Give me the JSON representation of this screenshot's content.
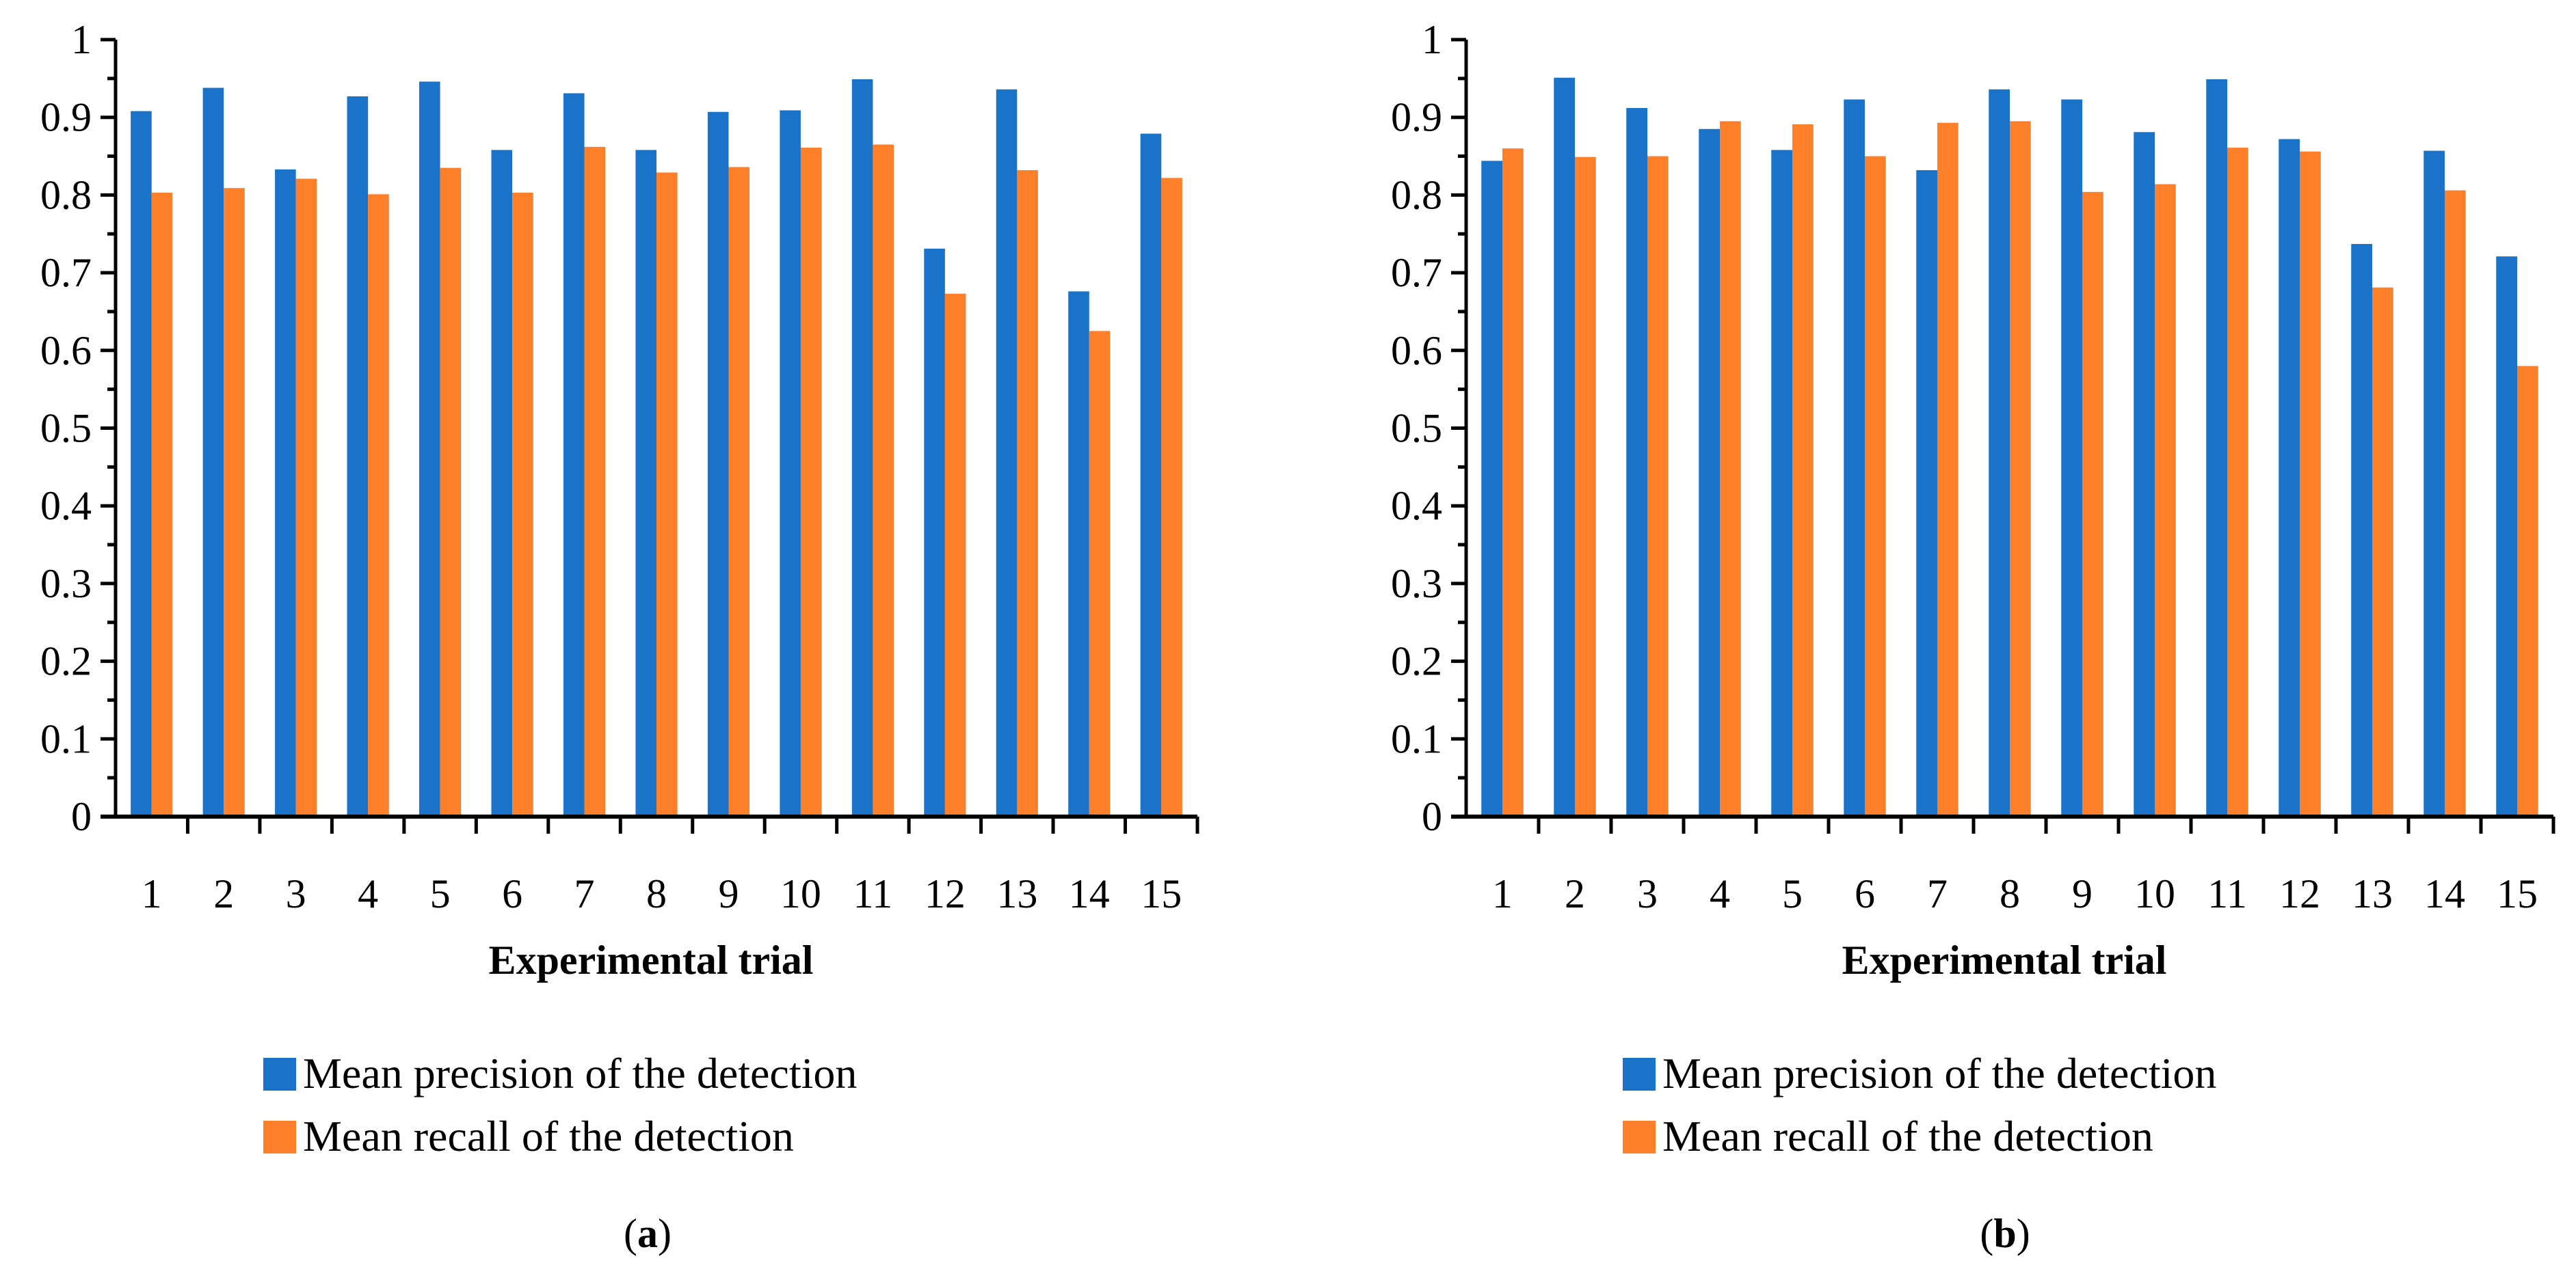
{
  "colors": {
    "precision": "#1a73c8",
    "recall": "#fe7f2a",
    "axis": "#000000"
  },
  "chart_data": [
    {
      "type": "bar",
      "caption_letter": "a",
      "categories": [
        "1",
        "2",
        "3",
        "4",
        "5",
        "6",
        "7",
        "8",
        "9",
        "10",
        "11",
        "12",
        "13",
        "14",
        "15"
      ],
      "xlabel": "Experimental trial",
      "ylabel": "",
      "ylim": [
        0,
        1
      ],
      "yticks": [
        "0",
        "0.1",
        "0.2",
        "0.3",
        "0.4",
        "0.5",
        "0.6",
        "0.7",
        "0.8",
        "0.9",
        "1"
      ],
      "grid": false,
      "legend_position": "bottom",
      "series": [
        {
          "name": "Mean precision of the detection",
          "values": [
            0.908,
            0.938,
            0.833,
            0.927,
            0.946,
            0.858,
            0.931,
            0.858,
            0.907,
            0.909,
            0.949,
            0.731,
            0.936,
            0.676,
            0.879
          ]
        },
        {
          "name": "Mean recall of the detection",
          "values": [
            0.803,
            0.809,
            0.821,
            0.801,
            0.835,
            0.803,
            0.862,
            0.829,
            0.836,
            0.861,
            0.865,
            0.673,
            0.832,
            0.625,
            0.822
          ]
        }
      ]
    },
    {
      "type": "bar",
      "caption_letter": "b",
      "categories": [
        "1",
        "2",
        "3",
        "4",
        "5",
        "6",
        "7",
        "8",
        "9",
        "10",
        "11",
        "12",
        "13",
        "14",
        "15"
      ],
      "xlabel": "Experimental trial",
      "ylabel": "",
      "ylim": [
        0,
        1
      ],
      "yticks": [
        "0",
        "0.1",
        "0.2",
        "0.3",
        "0.4",
        "0.5",
        "0.6",
        "0.7",
        "0.8",
        "0.9",
        "1"
      ],
      "grid": false,
      "legend_position": "bottom",
      "series": [
        {
          "name": "Mean precision of the detection",
          "values": [
            0.844,
            0.951,
            0.912,
            0.885,
            0.858,
            0.923,
            0.832,
            0.936,
            0.923,
            0.881,
            0.949,
            0.872,
            0.737,
            0.857,
            0.721
          ]
        },
        {
          "name": "Mean recall of the detection",
          "values": [
            0.86,
            0.849,
            0.85,
            0.895,
            0.891,
            0.85,
            0.893,
            0.895,
            0.804,
            0.814,
            0.861,
            0.856,
            0.681,
            0.806,
            0.58
          ]
        }
      ]
    }
  ]
}
